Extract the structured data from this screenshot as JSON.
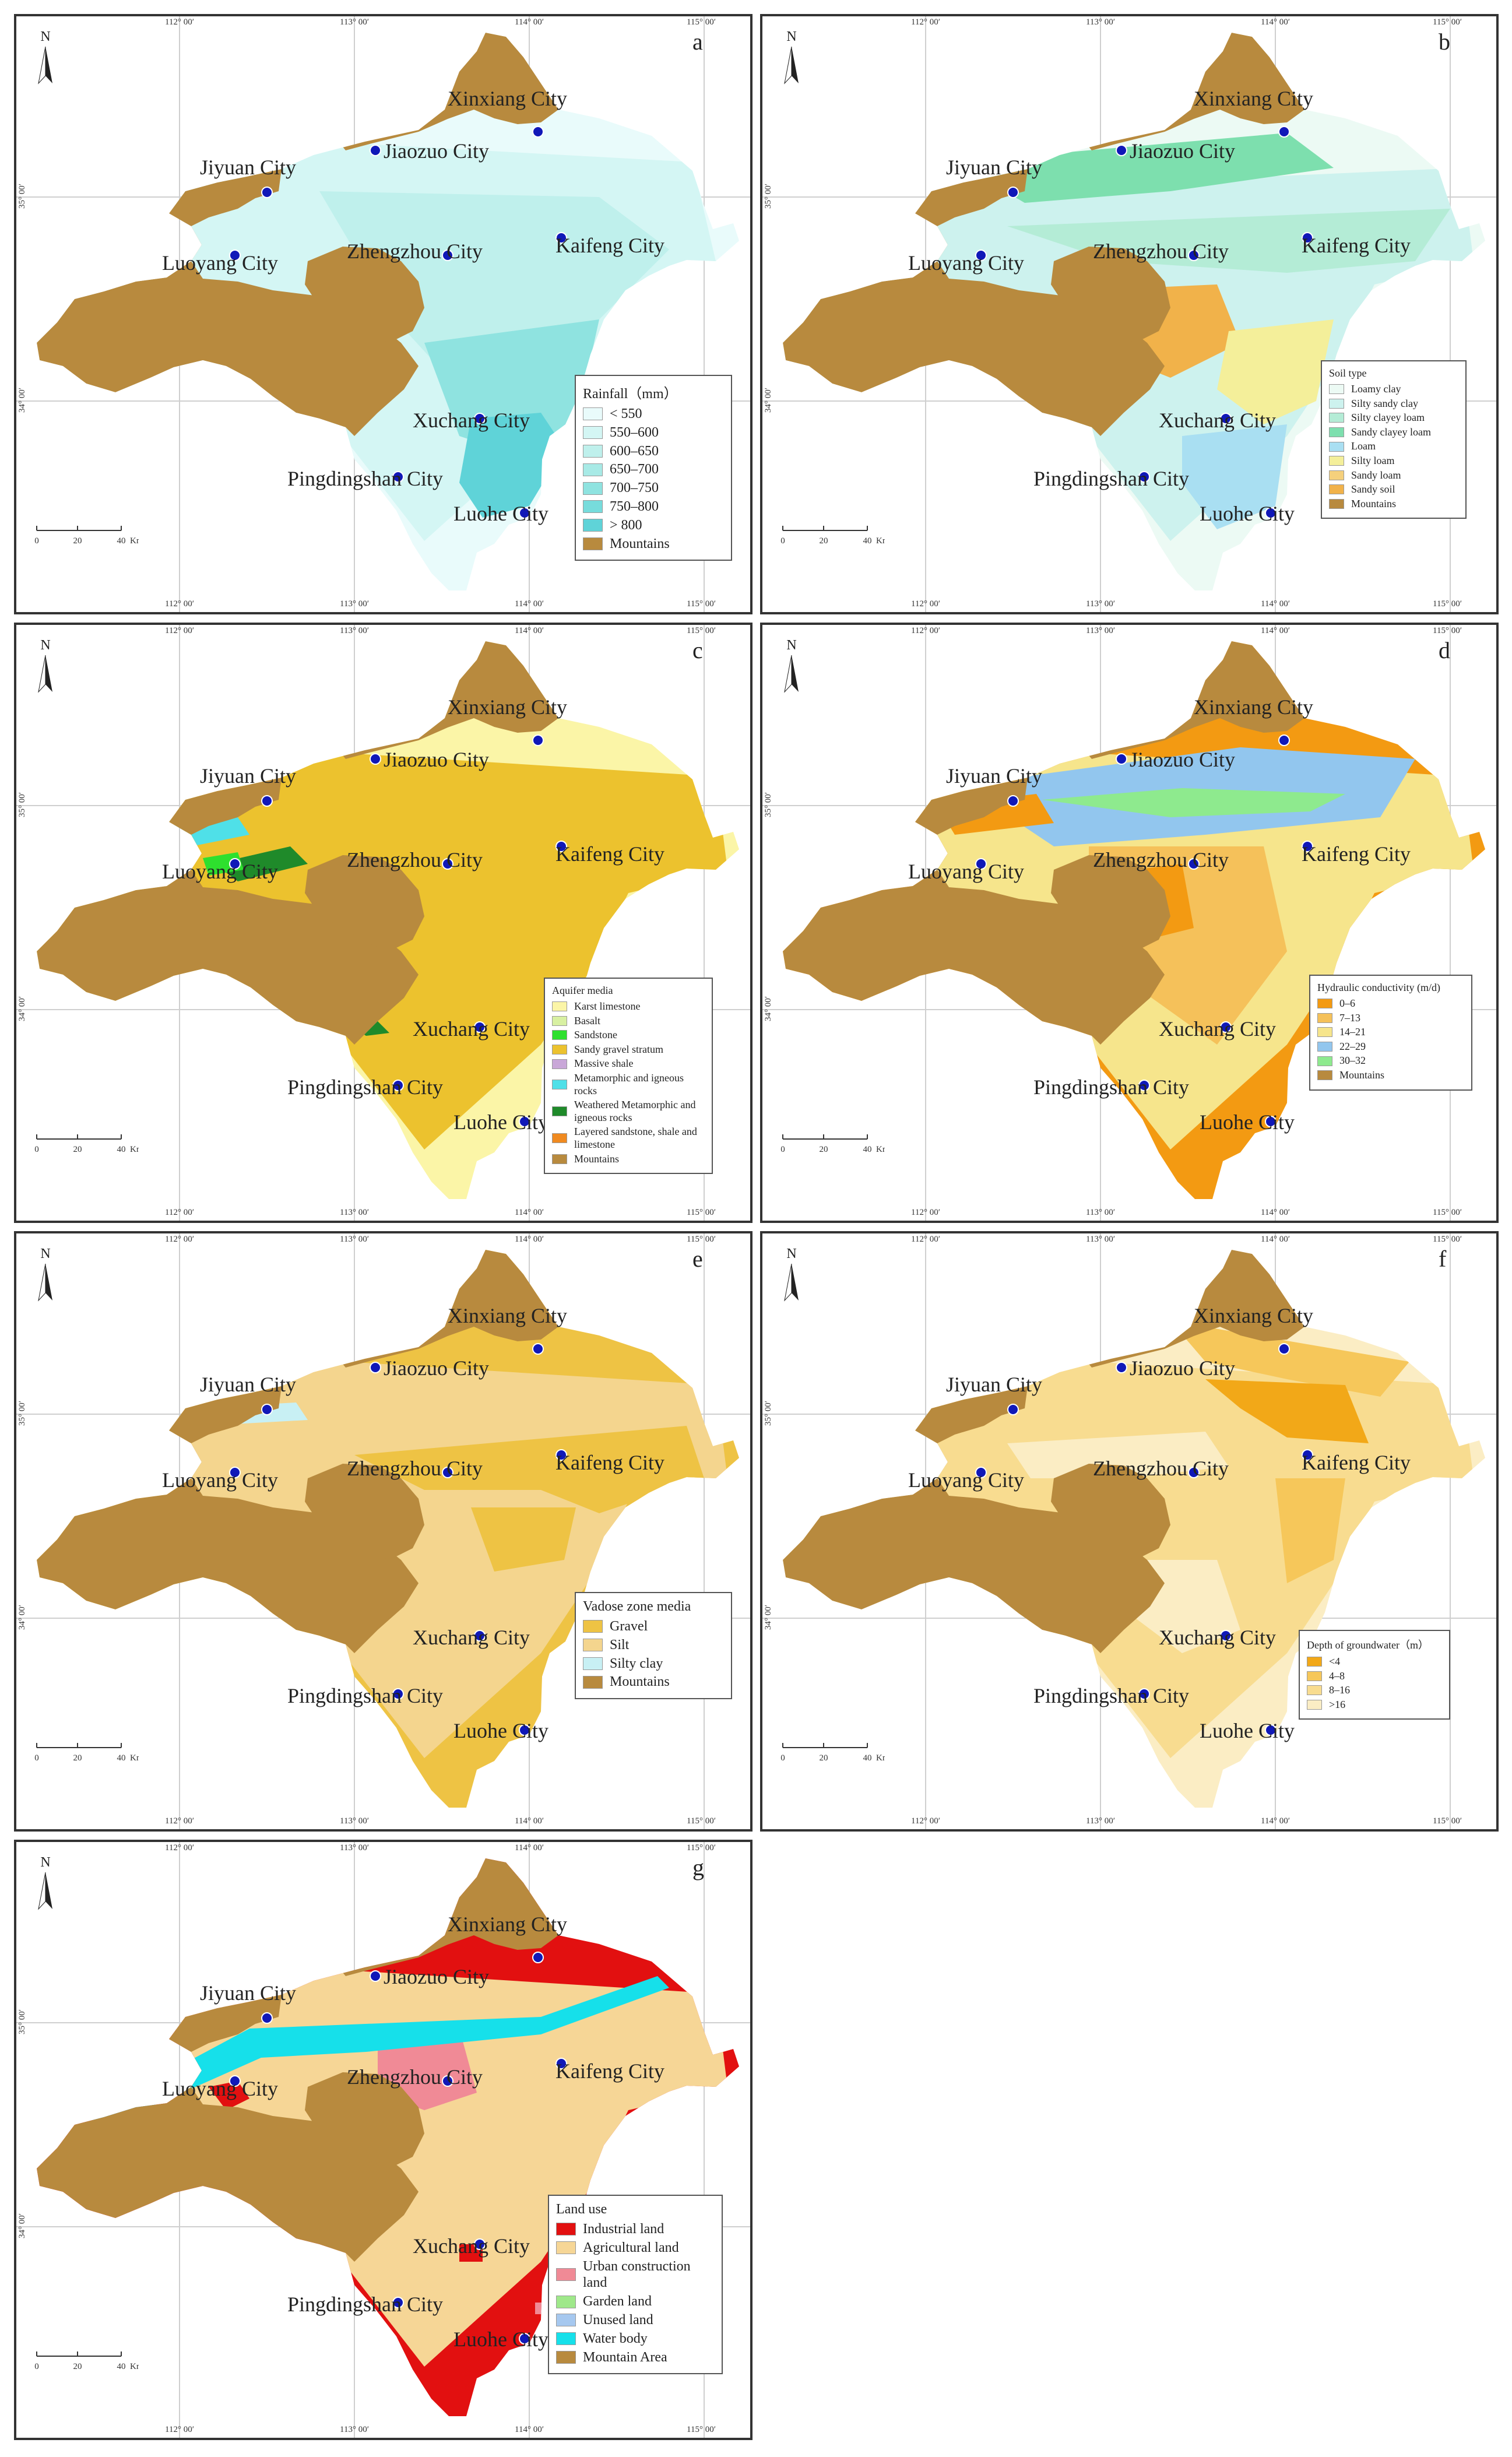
{
  "cities": [
    "Xinxiang City",
    "Jiyuan City",
    "Jiaozuo City",
    "Luoyang City",
    "Zhengzhou City",
    "Kaifeng City",
    "Xuchang City",
    "Pingdingshan City",
    "Luohe City"
  ],
  "coords": {
    "top": [
      "112° 00′",
      "113° 00′",
      "114° 00′",
      "115° 00′"
    ],
    "bottom": [
      "112° 00′",
      "113° 00′",
      "114° 00′",
      "115° 00′"
    ],
    "left": [
      "35° 00′",
      "34° 00′"
    ]
  },
  "north_label": "N",
  "scale": {
    "ticks": [
      "0",
      "20",
      "40"
    ],
    "unit": "Km"
  },
  "mountain_color": "#b88a3e",
  "panels": {
    "a": {
      "letter": "a",
      "legend": {
        "title": "Rainfall（mm）",
        "items": [
          {
            "label": "< 550",
            "color": "#e9fbfb"
          },
          {
            "label": "550–600",
            "color": "#d4f6f4"
          },
          {
            "label": "600–650",
            "color": "#bff0ec"
          },
          {
            "label": "650–700",
            "color": "#a8eae6"
          },
          {
            "label": "700–750",
            "color": "#8fe3e0"
          },
          {
            "label": "750–800",
            "color": "#77dcdc"
          },
          {
            "label": "> 800",
            "color": "#5fd3d8"
          },
          {
            "label": "Mountains",
            "color": "#b88a3e"
          }
        ]
      }
    },
    "b": {
      "letter": "b",
      "legend": {
        "title": "Soil type",
        "items": [
          {
            "label": "Loamy clay",
            "color": "#ecfaf4"
          },
          {
            "label": "Silty sandy clay",
            "color": "#cdf2ee"
          },
          {
            "label": "Silty clayey loam",
            "color": "#b4ecd6"
          },
          {
            "label": "Sandy clayey loam",
            "color": "#7ddfae"
          },
          {
            "label": "Loam",
            "color": "#a9dff2"
          },
          {
            "label": "Silty loam",
            "color": "#f4ef9a"
          },
          {
            "label": "Sandy loam",
            "color": "#f5d07c"
          },
          {
            "label": "Sandy soil",
            "color": "#f1b24a"
          },
          {
            "label": "Mountains",
            "color": "#b88a3e"
          }
        ]
      }
    },
    "c": {
      "letter": "c",
      "legend": {
        "title": "Aquifer media",
        "items": [
          {
            "label": "Karst limestone",
            "color": "#fbf5a7"
          },
          {
            "label": "Basalt",
            "color": "#d8f0a2"
          },
          {
            "label": "Sandstone",
            "color": "#2ee02e"
          },
          {
            "label": "Sandy gravel stratum",
            "color": "#ecc22e"
          },
          {
            "label": "Massive shale",
            "color": "#c9a7d8"
          },
          {
            "label": "Metamorphic and igneous rocks",
            "color": "#4fe0e8"
          },
          {
            "label": "Weathered Metamorphic and igneous rocks",
            "color": "#1f8a2a"
          },
          {
            "label": "Layered sandstone, shale and limestone",
            "color": "#f08a20"
          },
          {
            "label": "Mountains",
            "color": "#b88a3e"
          }
        ]
      }
    },
    "d": {
      "letter": "d",
      "legend": {
        "title": "Hydraulic conductivity (m/d)",
        "items": [
          {
            "label": "0–6",
            "color": "#f39a12"
          },
          {
            "label": "7–13",
            "color": "#f5c15a"
          },
          {
            "label": "14–21",
            "color": "#f6e58c"
          },
          {
            "label": "22–29",
            "color": "#92c6ee"
          },
          {
            "label": "30–32",
            "color": "#8eea8e"
          },
          {
            "label": "Mountains",
            "color": "#b88a3e"
          }
        ]
      }
    },
    "e": {
      "letter": "e",
      "legend": {
        "title": "Vadose zone media",
        "items": [
          {
            "label": "Gravel",
            "color": "#eec344"
          },
          {
            "label": "Silt",
            "color": "#f4d58e"
          },
          {
            "label": "Silty clay",
            "color": "#c8f0f4"
          },
          {
            "label": "Mountains",
            "color": "#b88a3e"
          }
        ]
      }
    },
    "f": {
      "letter": "f",
      "legend": {
        "title": "Depth of groundwater（m）",
        "items": [
          {
            "label": "<4",
            "color": "#f2a818"
          },
          {
            "label": "4–8",
            "color": "#f6c75a"
          },
          {
            "label": "8–16",
            "color": "#f8dc90"
          },
          {
            "label": ">16",
            "color": "#fbedc4"
          }
        ]
      }
    },
    "g": {
      "letter": "g",
      "legend": {
        "title": "Land use",
        "items": [
          {
            "label": "Industrial land",
            "color": "#e21010"
          },
          {
            "label": "Agricultural land",
            "color": "#f6d696"
          },
          {
            "label": "Urban construction land",
            "color": "#f08a96"
          },
          {
            "label": "Garden land",
            "color": "#9fe88a"
          },
          {
            "label": "Unused land",
            "color": "#a6c8ef"
          },
          {
            "label": "Water body",
            "color": "#16e0ea"
          },
          {
            "label": "Mountain Area",
            "color": "#b88a3e"
          }
        ]
      }
    }
  }
}
